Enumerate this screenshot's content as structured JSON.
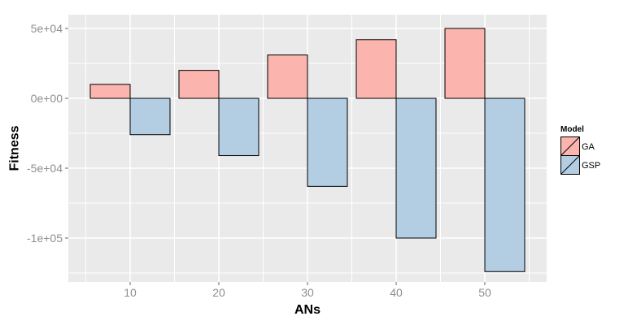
{
  "chart_data": {
    "type": "bar",
    "title": "",
    "xlabel": "ANs",
    "ylabel": "Fitness",
    "categories": [
      "10",
      "20",
      "30",
      "40",
      "50"
    ],
    "series": [
      {
        "name": "GA",
        "color": "#FBB4AE",
        "values": [
          10000,
          20000,
          31000,
          42000,
          50000
        ]
      },
      {
        "name": "GSP",
        "color": "#B3CDE3",
        "values": [
          -26000,
          -41000,
          -63000,
          -100000,
          -124000
        ]
      }
    ],
    "legend": {
      "title": "Model",
      "position": "right"
    },
    "ylim": [
      -131400,
      59900
    ],
    "yticks": [
      {
        "value": 50000,
        "label": "5e+04"
      },
      {
        "value": 0,
        "label": "0e+00"
      },
      {
        "value": -50000,
        "label": "-5e+04"
      },
      {
        "value": -100000,
        "label": "-1e+05"
      }
    ],
    "yminor": [
      25000,
      -25000,
      -75000,
      -125000
    ],
    "grid": "major+minor",
    "colors": {
      "panel_bg": "#EAEAEA",
      "grid": "#FFFFFF",
      "bar_stroke": "#000000",
      "tick_mark": "#666666",
      "tick_label": "#8E8E8E",
      "axis_title": "#000000",
      "legend_text": "#000000",
      "background": "#FFFFFF"
    }
  }
}
